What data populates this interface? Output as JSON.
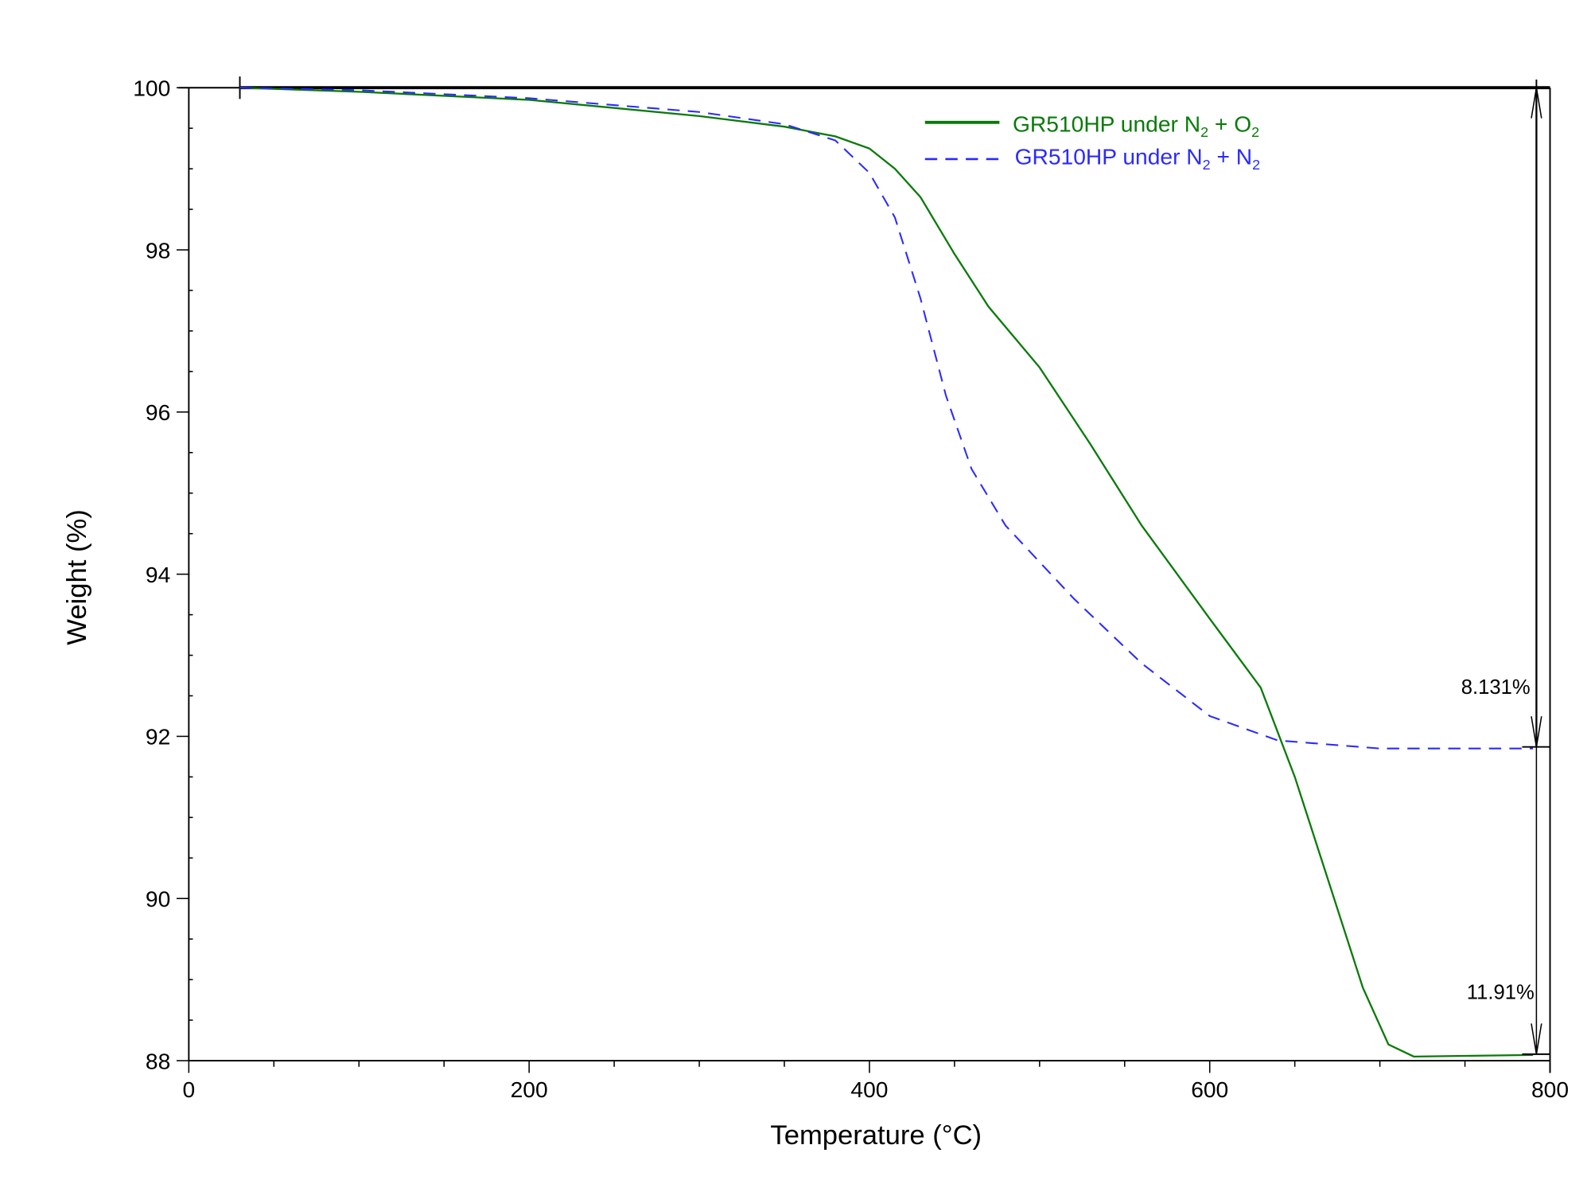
{
  "chart_data": {
    "type": "line",
    "title": "",
    "xlabel": "Temperature (°C)",
    "ylabel": "Weight (%)",
    "xlim": [
      0,
      800
    ],
    "ylim": [
      88,
      100
    ],
    "xticks": [
      0,
      200,
      400,
      600,
      800
    ],
    "yticks": [
      88,
      90,
      92,
      94,
      96,
      98,
      100
    ],
    "grid": false,
    "legend_position": "top-right",
    "series": [
      {
        "name": "GR510HP under N2 + O2",
        "legend": {
          "pre": "GR510HP under N",
          "sub1": "2",
          "mid": " + O",
          "sub2": "2"
        },
        "color": "#0a7a0a",
        "style": "solid",
        "x": [
          30,
          100,
          200,
          300,
          350,
          380,
          400,
          415,
          430,
          450,
          470,
          500,
          530,
          560,
          600,
          630,
          650,
          670,
          690,
          705,
          720,
          790
        ],
        "y": [
          100,
          99.95,
          99.85,
          99.65,
          99.52,
          99.4,
          99.25,
          99.0,
          98.65,
          97.95,
          97.3,
          96.55,
          95.6,
          94.6,
          93.45,
          92.6,
          91.5,
          90.2,
          88.9,
          88.2,
          88.05,
          88.07
        ]
      },
      {
        "name": "GR510HP under N2 + N2",
        "legend": {
          "pre": "GR510HP under N",
          "sub1": "2",
          "mid": " + N",
          "sub2": "2"
        },
        "color": "#2a2aff",
        "style": "dashed",
        "x": [
          30,
          100,
          200,
          300,
          350,
          380,
          400,
          415,
          430,
          445,
          460,
          480,
          520,
          560,
          600,
          640,
          700,
          790
        ],
        "y": [
          100,
          99.97,
          99.87,
          99.7,
          99.55,
          99.35,
          98.95,
          98.4,
          97.4,
          96.2,
          95.3,
          94.6,
          93.7,
          92.9,
          92.25,
          91.95,
          91.85,
          91.85
        ]
      }
    ],
    "annotations": [
      {
        "label": "8.131%",
        "x": 792,
        "from": 100,
        "to": 91.87
      },
      {
        "label": "11.91%",
        "x": 792,
        "from": 91.87,
        "to": 88.08
      }
    ]
  }
}
